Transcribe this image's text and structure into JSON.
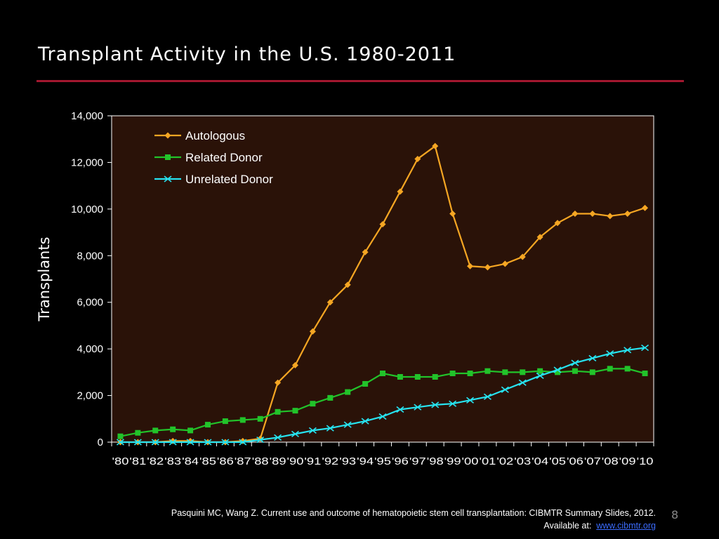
{
  "slide": {
    "title": "Transplant Activity in the U.S. 1980-2011",
    "citation_line1": "Pasquini MC, Wang Z. Current use and outcome of hematopoietic stem cell transplantation: CIBMTR Summary Slides, 2012.",
    "citation_prefix": "Available at:",
    "citation_link": "www.cibmtr.org",
    "page_number": "8"
  },
  "colors": {
    "background": "#000000",
    "plot_background": "#2a1208",
    "title_rule": "#a3172f",
    "autologous": "#f5a623",
    "related": "#22c32a",
    "unrelated": "#27e3f0"
  },
  "chart_data": {
    "type": "line",
    "title": "",
    "xlabel": "",
    "ylabel": "Transplants",
    "ylim": [
      0,
      14000
    ],
    "yticks": [
      0,
      2000,
      4000,
      6000,
      8000,
      10000,
      12000,
      14000
    ],
    "ytick_labels": [
      "0",
      "2,000",
      "4,000",
      "6,000",
      "8,000",
      "10,000",
      "12,000",
      "14,000"
    ],
    "categories": [
      "'80",
      "'81",
      "'82",
      "'83",
      "'84",
      "'85",
      "'86",
      "'87",
      "'88",
      "'89",
      "'90",
      "'91",
      "'92",
      "'93",
      "'94",
      "'95",
      "'96",
      "'97",
      "'98",
      "'99",
      "'00",
      "'01",
      "'02",
      "'03",
      "'04",
      "'05",
      "'06",
      "'07",
      "'08",
      "'09",
      "'10"
    ],
    "grid": false,
    "legend_position": "top-left",
    "series": [
      {
        "name": "Autologous",
        "marker": "diamond",
        "color_key": "autologous",
        "values": [
          0,
          0,
          0,
          50,
          50,
          0,
          0,
          50,
          150,
          2550,
          3300,
          4750,
          6000,
          6750,
          8150,
          9350,
          10750,
          12150,
          12700,
          9800,
          7550,
          7500,
          7650,
          7950,
          8800,
          9400,
          9800,
          9800,
          9700,
          9800,
          10050
        ]
      },
      {
        "name": "Related Donor",
        "marker": "square",
        "color_key": "related",
        "values": [
          250,
          400,
          500,
          550,
          500,
          750,
          900,
          950,
          1000,
          1300,
          1350,
          1650,
          1900,
          2150,
          2500,
          2950,
          2800,
          2800,
          2800,
          2950,
          2950,
          3050,
          3000,
          3000,
          3050,
          3000,
          3050,
          3000,
          3150,
          3150,
          2950
        ]
      },
      {
        "name": "Unrelated Donor",
        "marker": "x",
        "color_key": "unrelated",
        "values": [
          0,
          0,
          0,
          0,
          0,
          0,
          0,
          0,
          100,
          200,
          350,
          500,
          600,
          750,
          900,
          1100,
          1400,
          1500,
          1600,
          1650,
          1800,
          1950,
          2250,
          2550,
          2850,
          3100,
          3400,
          3600,
          3800,
          3950,
          4050
        ]
      }
    ]
  }
}
